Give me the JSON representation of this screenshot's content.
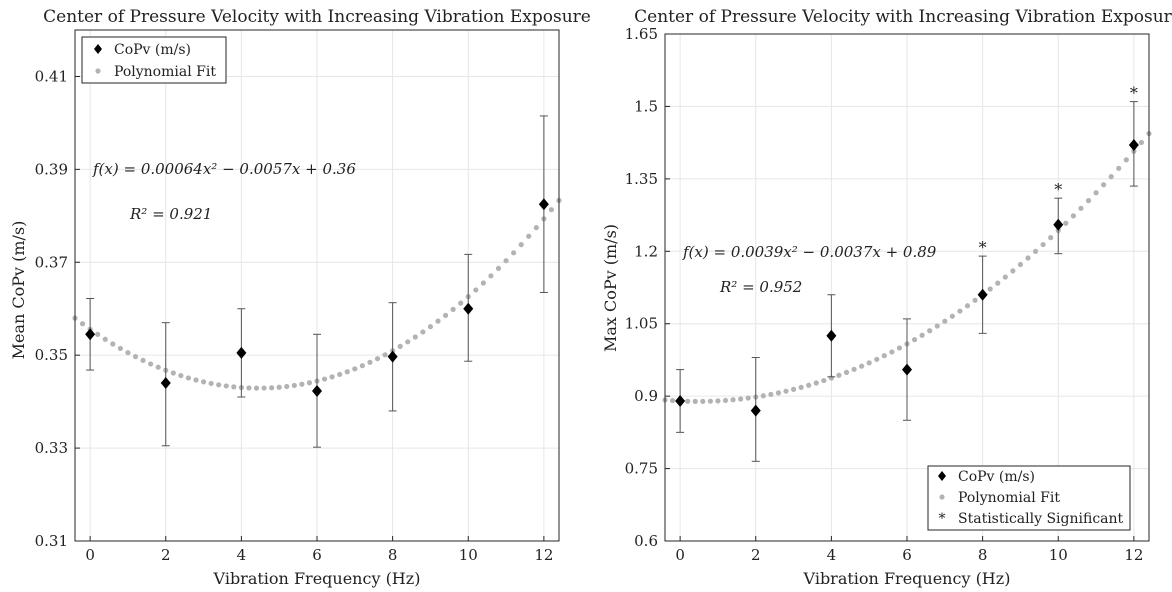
{
  "chart_data": [
    {
      "type": "scatter",
      "title": "Center of Pressure Velocity with Increasing Vibration Exposure",
      "xlabel": "Vibration Frequency (Hz)",
      "ylabel": "Mean CoPv (m/s)",
      "xlim": [
        -0.4,
        12.4
      ],
      "ylim": [
        0.31,
        0.42
      ],
      "xticks": [
        0,
        2,
        4,
        6,
        8,
        10,
        12
      ],
      "yticks": [
        0.31,
        0.33,
        0.35,
        0.37,
        0.39,
        0.41
      ],
      "ytick_labels": [
        "0.31",
        "0.33",
        "0.35",
        "0.37",
        "0.39",
        "0.41"
      ],
      "grid": true,
      "legend_position": "top-left",
      "legend": [
        "CoPv (m/s)",
        "Polynomial Fit"
      ],
      "equation_text": "f(x) = 0.00064x² − 0.0057x + 0.36",
      "r2_text": "R² = 0.921",
      "fit": {
        "a": 0.00064,
        "b": -0.0057,
        "c": 0.3556
      },
      "series": [
        {
          "name": "CoPv (m/s)",
          "x": [
            0,
            2,
            4,
            6,
            8,
            10,
            12
          ],
          "y": [
            0.3545,
            0.344,
            0.3505,
            0.3423,
            0.3497,
            0.36,
            0.3825
          ],
          "err_low": [
            0.3468,
            0.3305,
            0.341,
            0.3302,
            0.338,
            0.3487,
            0.3635
          ],
          "err_high": [
            0.3622,
            0.357,
            0.36,
            0.3545,
            0.3613,
            0.3717,
            0.4015
          ]
        }
      ],
      "significant_x": [],
      "colors": {
        "points": "#000000",
        "fit": "#b3b3b3",
        "error": "#555555"
      }
    },
    {
      "type": "scatter",
      "title": "Center of Pressure Velocity with Increasing Vibration Exposure",
      "xlabel": "Vibration Frequency (Hz)",
      "ylabel": "Max CoPv (m/s)",
      "xlim": [
        -0.4,
        12.4
      ],
      "ylim": [
        0.6,
        1.65
      ],
      "xticks": [
        0,
        2,
        4,
        6,
        8,
        10,
        12
      ],
      "yticks": [
        0.6,
        0.75,
        0.9,
        1.05,
        1.2,
        1.35,
        1.5,
        1.65
      ],
      "ytick_labels": [
        "0.6",
        "0.75",
        "0.9",
        "1.05",
        "1.2",
        "1.35",
        "1.5",
        "1.65"
      ],
      "grid": true,
      "legend_position": "bottom-right",
      "legend": [
        "CoPv (m/s)",
        "Polynomial Fit",
        "Statistically Significant"
      ],
      "equation_text": "f(x) = 0.0039x² − 0.0037x + 0.89",
      "r2_text": "R² = 0.952",
      "fit": {
        "a": 0.0039,
        "b": -0.0037,
        "c": 0.89
      },
      "series": [
        {
          "name": "CoPv (m/s)",
          "x": [
            0,
            2,
            4,
            6,
            8,
            10,
            12
          ],
          "y": [
            0.89,
            0.87,
            1.025,
            0.955,
            1.11,
            1.255,
            1.42
          ],
          "err_low": [
            0.825,
            0.765,
            0.94,
            0.85,
            1.03,
            1.195,
            1.335
          ],
          "err_high": [
            0.955,
            0.98,
            1.11,
            1.06,
            1.19,
            1.31,
            1.51
          ]
        }
      ],
      "significant_x": [
        8,
        10,
        12
      ],
      "colors": {
        "points": "#000000",
        "fit": "#b3b3b3",
        "error": "#555555"
      }
    }
  ]
}
